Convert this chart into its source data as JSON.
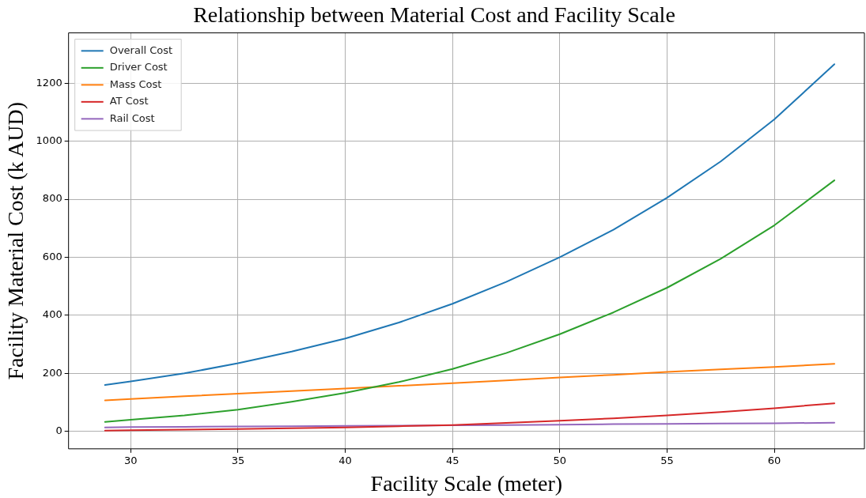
{
  "chart_data": {
    "type": "line",
    "title": "Relationship between Material Cost and Facility Scale",
    "xlabel": "Facility Scale (meter)",
    "ylabel": "Facility Material Cost (k AUD)",
    "x": [
      28.8,
      30,
      32.5,
      35,
      37.5,
      40,
      42.5,
      45,
      47.5,
      50,
      52.5,
      55,
      57.5,
      60,
      62.8
    ],
    "series": [
      {
        "name": "Overall Cost",
        "color": "#1f77b4",
        "values": [
          160,
          172,
          200,
          235,
          275,
          320,
          375,
          440,
          515,
          600,
          695,
          805,
          930,
          1075,
          1265
        ]
      },
      {
        "name": "Driver Cost",
        "color": "#2ca02c",
        "values": [
          33,
          40,
          55,
          75,
          102,
          133,
          170,
          215,
          270,
          335,
          410,
          495,
          595,
          710,
          865
        ]
      },
      {
        "name": "Mass Cost",
        "color": "#ff7f0e",
        "values": [
          107,
          112,
          121,
          130,
          139,
          148,
          157,
          166,
          176,
          186,
          195,
          205,
          214,
          222,
          233
        ]
      },
      {
        "name": "AT Cost",
        "color": "#d62728",
        "values": [
          3,
          4,
          6,
          8,
          11,
          14,
          18,
          22,
          29,
          37,
          45,
          55,
          67,
          80,
          97
        ]
      },
      {
        "name": "Rail Cost",
        "color": "#9467bd",
        "values": [
          14,
          15,
          16,
          17,
          18,
          19,
          20,
          21,
          22,
          23,
          25,
          26,
          27,
          28,
          30
        ]
      }
    ],
    "xlim": [
      27.1,
      64.2
    ],
    "xticks": [
      30,
      35,
      40,
      45,
      50,
      55,
      60
    ],
    "ylim": [
      -60,
      1373
    ],
    "yticks": [
      0,
      200,
      400,
      600,
      800,
      1000,
      1200
    ],
    "grid": true,
    "legend": "top left",
    "marker": "none",
    "line_style": "solid"
  }
}
